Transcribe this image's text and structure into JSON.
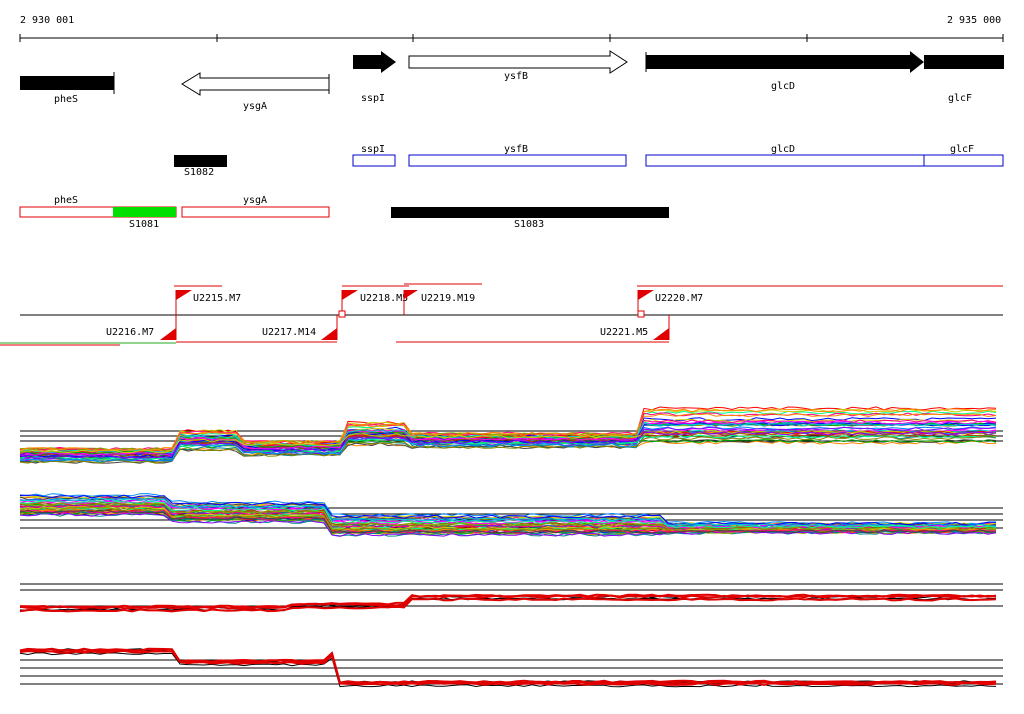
{
  "ruler": {
    "start_label": "2 930 001",
    "end_label": "2 935 000"
  },
  "genes_top": [
    {
      "label": "pheS",
      "strand": "none",
      "fill": "black"
    },
    {
      "label": "ysgA",
      "strand": "reverse",
      "fill": "white"
    },
    {
      "label": "sspI",
      "strand": "forward",
      "fill": "black"
    },
    {
      "label": "ysfB",
      "strand": "forward",
      "fill": "white"
    },
    {
      "label": "glcD",
      "strand": "forward",
      "fill": "black"
    },
    {
      "label": "glcF",
      "strand": "none",
      "fill": "black"
    }
  ],
  "boxes_blue": [
    "sspI",
    "ysfB",
    "glcD",
    "glcF"
  ],
  "s_features": [
    {
      "label": "S1082",
      "color": "#000000"
    },
    {
      "label": "S1081",
      "color": "#00e000"
    },
    {
      "label": "S1083",
      "color": "#000000"
    }
  ],
  "boxes_red": [
    "pheS",
    "ysgA"
  ],
  "tss_forward": [
    "U2215.M7",
    "U2218.M5",
    "U2219.M19",
    "U2220.M7"
  ],
  "tss_reverse": [
    "U2216.M7",
    "U2217.M14",
    "U2221.M5"
  ],
  "colors": {
    "black": "#000000",
    "blue": "#0000cc",
    "red": "#e00000",
    "green": "#00e000"
  }
}
